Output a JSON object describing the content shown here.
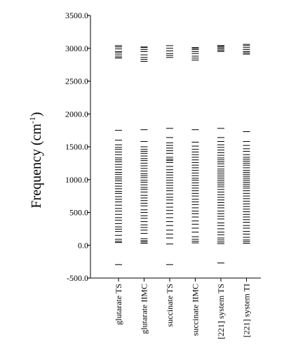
{
  "chart_data": {
    "type": "scatter",
    "ylabel": {
      "base": "Frequency (cm",
      "sup": "-1",
      "close": ")"
    },
    "ylim": [
      -500,
      3500
    ],
    "yticks": [
      {
        "value": 3500,
        "label": "3500.0"
      },
      {
        "value": 3000,
        "label": "3000.0"
      },
      {
        "value": 2500,
        "label": "2500.0"
      },
      {
        "value": 2000,
        "label": "2000.0"
      },
      {
        "value": 1500,
        "label": "1500.0"
      },
      {
        "value": 1000,
        "label": "1000.0"
      },
      {
        "value": 500,
        "label": "500.0"
      },
      {
        "value": 0,
        "label": "0.0"
      },
      {
        "value": -500,
        "label": "-500.0"
      }
    ],
    "categories": [
      "glutarate TS",
      "glutarate IIMC",
      "succinate TS",
      "succinate IIMC",
      "[221] system TS",
      "[221] system TI"
    ],
    "series": [
      {
        "imaginary": [
          -295
        ],
        "values": [
          40,
          60,
          90,
          150,
          210,
          245,
          280,
          330,
          380,
          420,
          470,
          520,
          560,
          610,
          660,
          700,
          740,
          790,
          820,
          860,
          900,
          940,
          980,
          1010,
          1040,
          1080,
          1110,
          1150,
          1190,
          1230,
          1270,
          1300,
          1330,
          1380,
          1420,
          1460,
          1490,
          1530,
          1600,
          1750,
          2850,
          2870,
          2900,
          2930,
          2950,
          2990,
          3020,
          3040
        ]
      },
      {
        "imaginary": [],
        "values": [
          30,
          50,
          70,
          100,
          180,
          230,
          270,
          310,
          360,
          410,
          450,
          500,
          540,
          600,
          640,
          680,
          720,
          760,
          810,
          850,
          880,
          920,
          960,
          990,
          1030,
          1060,
          1090,
          1130,
          1170,
          1210,
          1250,
          1290,
          1320,
          1360,
          1400,
          1430,
          1460,
          1500,
          1580,
          1760,
          2800,
          2830,
          2860,
          2900,
          2950,
          2980,
          3010,
          3020
        ]
      },
      {
        "imaginary": [
          -295
        ],
        "values": [
          20,
          110,
          170,
          230,
          300,
          360,
          420,
          480,
          530,
          580,
          640,
          690,
          730,
          780,
          830,
          870,
          910,
          950,
          990,
          1030,
          1070,
          1110,
          1150,
          1200,
          1260,
          1290,
          1310,
          1340,
          1400,
          1440,
          1480,
          1520,
          1560,
          1640,
          1780,
          2860,
          2890,
          2920,
          2960,
          3000,
          3040
        ]
      },
      {
        "imaginary": [],
        "values": [
          35,
          60,
          90,
          130,
          200,
          260,
          320,
          370,
          430,
          480,
          520,
          570,
          620,
          660,
          700,
          750,
          790,
          830,
          870,
          910,
          950,
          990,
          1020,
          1060,
          1100,
          1140,
          1180,
          1220,
          1260,
          1300,
          1340,
          1380,
          1420,
          1460,
          1510,
          1570,
          1760,
          2820,
          2850,
          2880,
          2920,
          2950,
          2980,
          3000,
          3010
        ]
      },
      {
        "imaginary": [
          -270
        ],
        "values": [
          25,
          50,
          80,
          110,
          160,
          200,
          250,
          300,
          340,
          400,
          440,
          480,
          520,
          570,
          610,
          650,
          690,
          730,
          770,
          810,
          850,
          890,
          920,
          950,
          980,
          1010,
          1040,
          1070,
          1100,
          1130,
          1160,
          1200,
          1240,
          1270,
          1300,
          1330,
          1370,
          1410,
          1450,
          1490,
          1530,
          1580,
          1640,
          1780,
          2950,
          2970,
          2990,
          3010,
          3030,
          3040
        ]
      },
      {
        "imaginary": [],
        "values": [
          30,
          55,
          80,
          120,
          170,
          210,
          260,
          300,
          350,
          390,
          430,
          470,
          510,
          550,
          590,
          630,
          670,
          710,
          750,
          790,
          830,
          870,
          900,
          930,
          960,
          990,
          1020,
          1050,
          1080,
          1110,
          1140,
          1180,
          1220,
          1250,
          1280,
          1310,
          1340,
          1380,
          1430,
          1470,
          1520,
          1580,
          1730,
          2910,
          2930,
          2950,
          2980,
          3010,
          3040,
          3060
        ]
      }
    ]
  }
}
